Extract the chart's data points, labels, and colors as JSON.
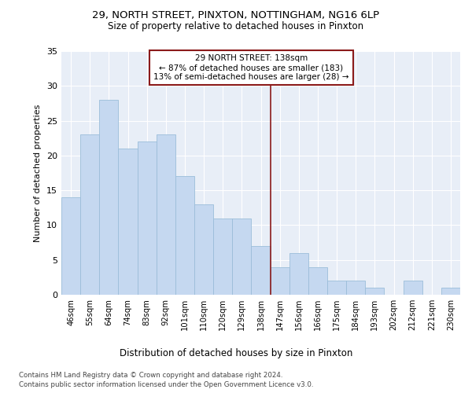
{
  "title_line1": "29, NORTH STREET, PINXTON, NOTTINGHAM, NG16 6LP",
  "title_line2": "Size of property relative to detached houses in Pinxton",
  "xlabel": "Distribution of detached houses by size in Pinxton",
  "ylabel": "Number of detached properties",
  "categories": [
    "46sqm",
    "55sqm",
    "64sqm",
    "74sqm",
    "83sqm",
    "92sqm",
    "101sqm",
    "110sqm",
    "120sqm",
    "129sqm",
    "138sqm",
    "147sqm",
    "156sqm",
    "166sqm",
    "175sqm",
    "184sqm",
    "193sqm",
    "202sqm",
    "212sqm",
    "221sqm",
    "230sqm"
  ],
  "values": [
    14,
    23,
    28,
    21,
    22,
    23,
    17,
    13,
    11,
    11,
    7,
    4,
    6,
    4,
    2,
    2,
    1,
    0,
    2,
    0,
    1
  ],
  "bar_color": "#c5d8f0",
  "bar_edge_color": "#9bbdd9",
  "highlight_index": 10,
  "highlight_line_color": "#8b1a1a",
  "highlight_box_color": "#8b1a1a",
  "ylim": [
    0,
    35
  ],
  "yticks": [
    0,
    5,
    10,
    15,
    20,
    25,
    30,
    35
  ],
  "annotation_title": "29 NORTH STREET: 138sqm",
  "annotation_line1": "← 87% of detached houses are smaller (183)",
  "annotation_line2": "13% of semi-detached houses are larger (28) →",
  "footer_line1": "Contains HM Land Registry data © Crown copyright and database right 2024.",
  "footer_line2": "Contains public sector information licensed under the Open Government Licence v3.0.",
  "bg_color": "#e8eef7",
  "fig_bg_color": "#ffffff"
}
